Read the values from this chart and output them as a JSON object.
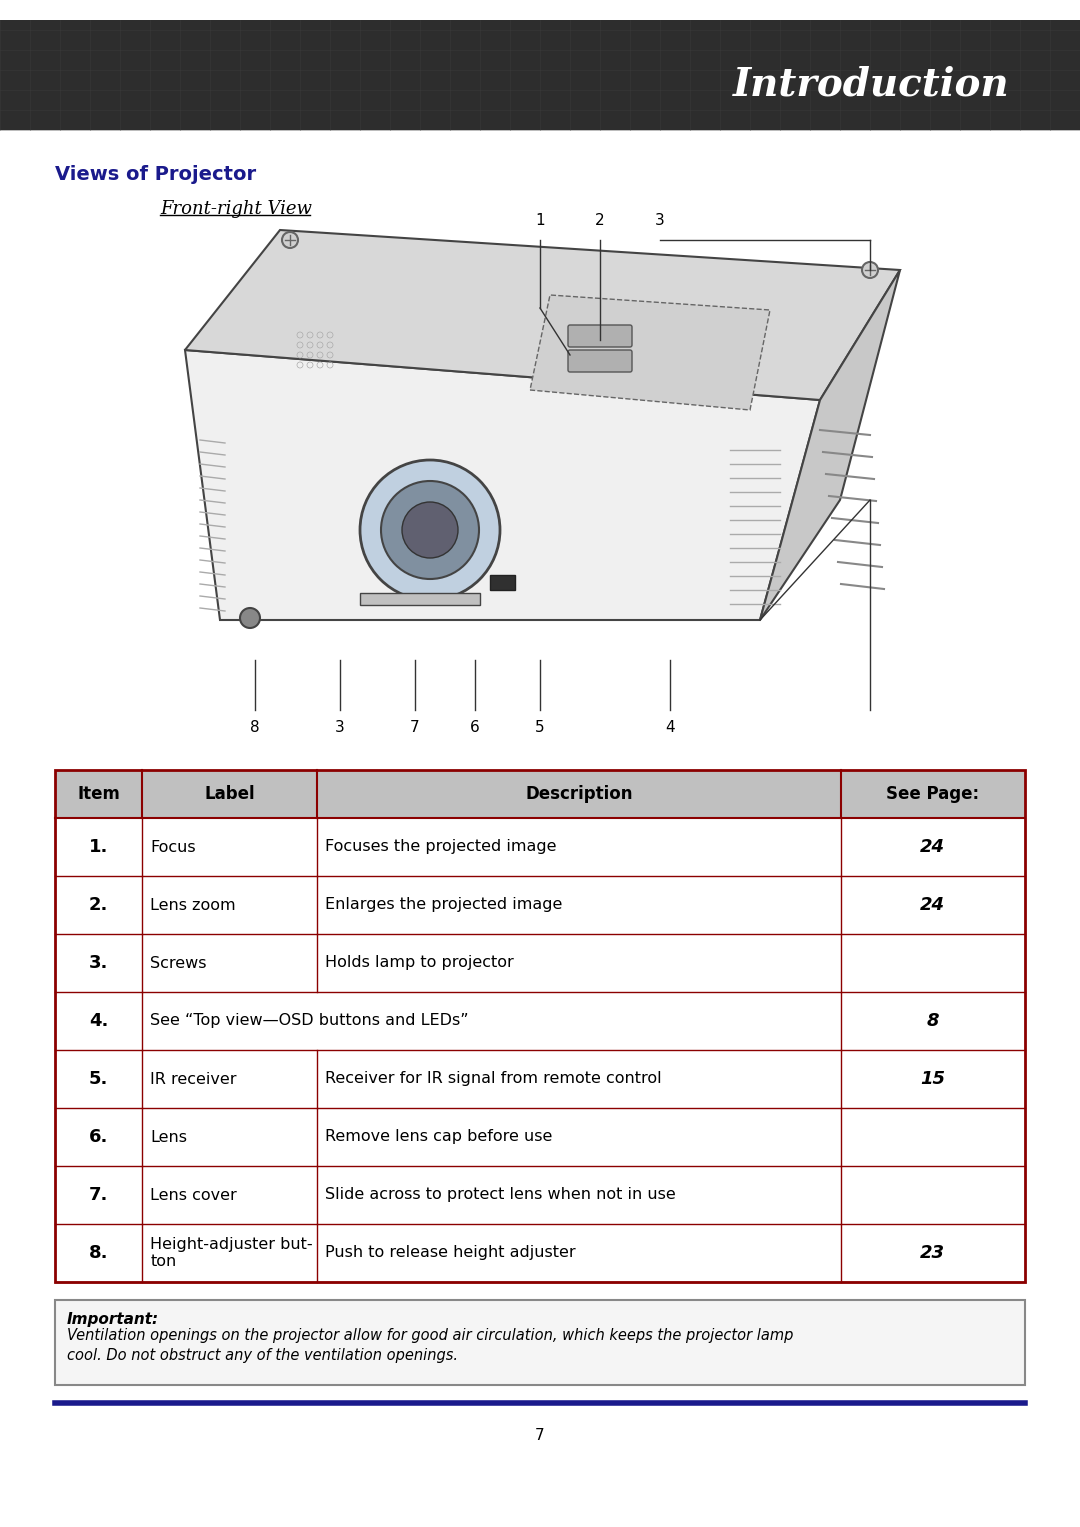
{
  "header_text": "Introduction",
  "header_bg_color": "#3a3a3a",
  "header_text_color": "#ffffff",
  "section_title": "Views of Projector",
  "section_title_color": "#1a1a8c",
  "subsection_title": "Front-right View",
  "page_bg": "#ffffff",
  "table_border_color": "#8b0000",
  "table_header_bg": "#c0c0c0",
  "table_header_text_color": "#000000",
  "table_rows": [
    {
      "item": "1.",
      "label": "Focus",
      "description": "Focuses the projected image",
      "see_page": "24"
    },
    {
      "item": "2.",
      "label": "Lens zoom",
      "description": "Enlarges the projected image",
      "see_page": "24"
    },
    {
      "item": "3.",
      "label": "Screws",
      "description": "Holds lamp to projector",
      "see_page": ""
    },
    {
      "item": "4.",
      "label": "",
      "description": "See “Top view—OSD buttons and LEDs”",
      "see_page": "8"
    },
    {
      "item": "5.",
      "label": "IR receiver",
      "description": "Receiver for IR signal from remote control",
      "see_page": "15"
    },
    {
      "item": "6.",
      "label": "Lens",
      "description": "Remove lens cap before use",
      "see_page": ""
    },
    {
      "item": "7.",
      "label": "Lens cover",
      "description": "Slide across to protect lens when not in use",
      "see_page": ""
    },
    {
      "item": "8.",
      "label": "Height-adjuster but-\nton",
      "description": "Push to release height adjuster",
      "see_page": "23"
    }
  ],
  "table_col_headers": [
    "Item",
    "Label",
    "Description",
    "See Page:"
  ],
  "important_title": "Important:",
  "important_text": "Ventilation openings on the projector allow for good air circulation, which keeps the projector lamp\ncool. Do not obstruct any of the ventilation openings.",
  "footer_line_color": "#1a1a8c",
  "page_number": "7",
  "diagram_numbers": [
    "1",
    "2",
    "3",
    "4",
    "5",
    "6",
    "7",
    "8"
  ],
  "diagram_numbers_bottom": [
    "8",
    "3",
    "7",
    "6",
    "5",
    "4"
  ],
  "diagram_numbers_top": [
    "1",
    "2",
    "3"
  ]
}
